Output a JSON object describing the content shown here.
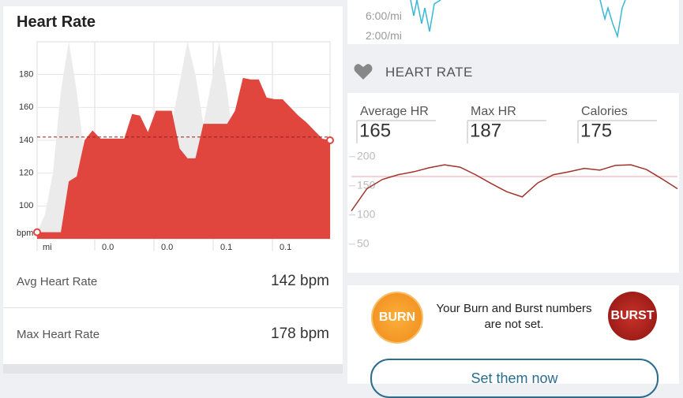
{
  "left_panel": {
    "title": "Heart Rate",
    "chart": {
      "type": "area",
      "ylim": [
        80,
        200
      ],
      "yticks": [
        100,
        120,
        140,
        160,
        180
      ],
      "y_unit": "bpm",
      "x_labels": [
        "mi",
        "0.0",
        "0.0",
        "0.1",
        "0.1"
      ],
      "average_line": 142,
      "series": [
        {
          "color": "#ebebeb",
          "values": [
            84,
            95,
            120,
            170,
            200,
            170,
            130,
            110,
            120,
            140,
            110,
            97,
            110,
            130,
            110,
            97,
            130,
            150,
            175,
            200,
            180,
            150,
            175,
            200,
            170,
            130,
            110,
            95,
            110,
            130,
            120,
            110,
            100,
            95,
            90,
            88,
            86,
            84
          ]
        },
        {
          "color": "#e0463e",
          "values": [
            84,
            84,
            84,
            84,
            115,
            118,
            140,
            146,
            141,
            141,
            141,
            141,
            156,
            155,
            145,
            158,
            158,
            158,
            135,
            129,
            129,
            150,
            150,
            150,
            150,
            158,
            178,
            177,
            177,
            166,
            165,
            165,
            160,
            155,
            151,
            146,
            141,
            140
          ]
        }
      ]
    },
    "stats": [
      {
        "label": "Avg Heart Rate",
        "value": "142 bpm"
      },
      {
        "label": "Max Heart Rate",
        "value": "178 bpm"
      }
    ]
  },
  "right_panel": {
    "pace_ticks": [
      "6:00/mi",
      "2:00/mi"
    ],
    "section_title": "HEART RATE",
    "stats": [
      {
        "label": "Average HR",
        "value": 165
      },
      {
        "label": "Max HR",
        "value": 187
      },
      {
        "label": "Calories",
        "value": 175
      }
    ],
    "chart": {
      "type": "line",
      "ylim": [
        20,
        220
      ],
      "yticks": [
        200,
        150,
        100,
        50
      ],
      "reference_line": 166,
      "color": "#a0332a",
      "values": [
        107,
        145,
        161,
        169,
        174,
        181,
        186,
        182,
        169,
        154,
        140,
        131,
        155,
        169,
        174,
        180,
        177,
        185,
        186,
        178,
        162,
        145
      ]
    },
    "burn_card": {
      "burn_label": "BURN",
      "message": "Your Burn and Burst numbers are not set.",
      "burst_label": "BURST",
      "button": "Set them now"
    }
  }
}
